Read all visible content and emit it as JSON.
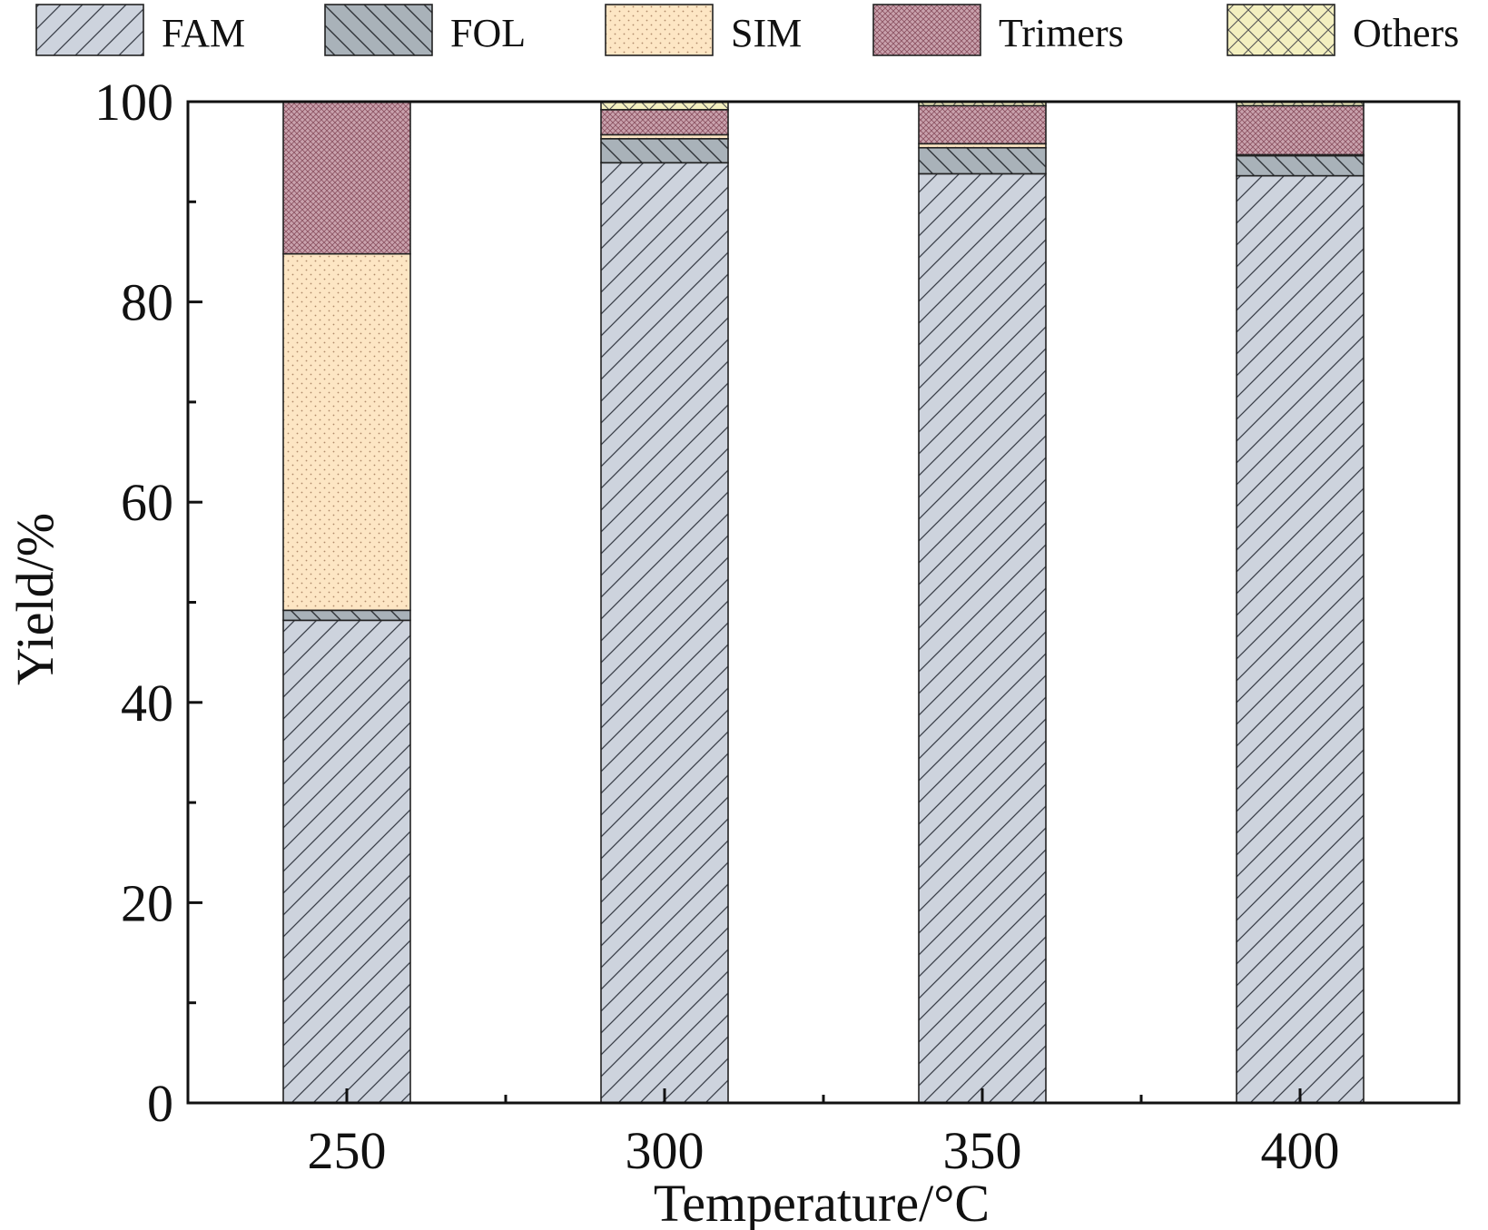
{
  "chart_data": {
    "type": "bar",
    "stacked": true,
    "title": "",
    "xlabel": "Temperature/°C",
    "ylabel": "Yield/%",
    "ylim": [
      0,
      100
    ],
    "yticks": [
      "0",
      "20",
      "40",
      "60",
      "80",
      "100"
    ],
    "categories": [
      "250",
      "300",
      "350",
      "400"
    ],
    "legend_position": "top",
    "grid": false,
    "series": [
      {
        "name": "FAM",
        "values": [
          48.2,
          93.9,
          92.8,
          92.6
        ],
        "color": "#cdd3dd",
        "pattern": "diagonal"
      },
      {
        "name": "FOL",
        "values": [
          1.0,
          2.4,
          2.6,
          2.0
        ],
        "color": "#a9b2b9",
        "pattern": "back-diagonal"
      },
      {
        "name": "SIM",
        "values": [
          35.6,
          0.4,
          0.4,
          0.1
        ],
        "color": "#fde6c4",
        "pattern": "dots"
      },
      {
        "name": "Trimers",
        "values": [
          15.2,
          2.5,
          3.8,
          4.9
        ],
        "color": "#c9a2ad",
        "pattern": "crosshatch-fine"
      },
      {
        "name": "Others",
        "values": [
          0.0,
          0.8,
          0.4,
          0.4
        ],
        "color": "#f3efbf",
        "pattern": "crosshatch"
      }
    ]
  }
}
